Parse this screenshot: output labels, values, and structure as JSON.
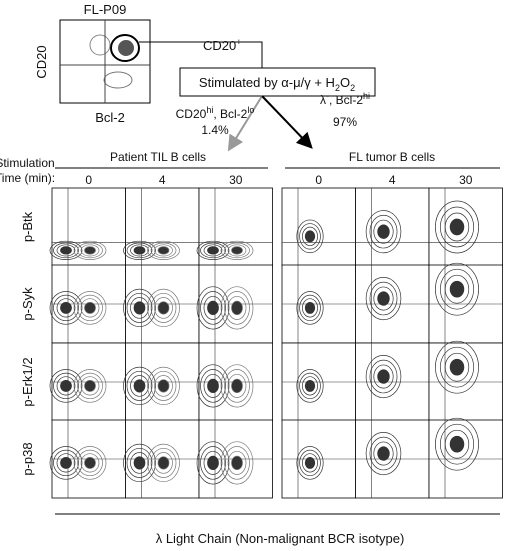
{
  "header": {
    "sample": "FL-P09",
    "y_axis": "CD20",
    "x_axis": "Bcl-2"
  },
  "gate": {
    "text": "CD20",
    "sup": "+"
  },
  "stimulus": [
    {
      "text": "Stimulated by α-μ/γ + H"
    },
    {
      "sub": "2"
    },
    {
      "text": "O"
    },
    {
      "sub": "2"
    }
  ],
  "branches": [
    {
      "label": [
        {
          "text": "CD20"
        },
        {
          "sup": "hi"
        },
        {
          "text": ", Bcl-2"
        },
        {
          "sup": "lo"
        }
      ],
      "percent": "1.4%",
      "title": "Patient TIL B cells"
    },
    {
      "label": [
        {
          "text": "λ"
        },
        {
          "sup": "-"
        },
        {
          "text": ", Bcl-2"
        },
        {
          "sup": "hi"
        }
      ],
      "percent": "97%",
      "title": "FL tumor B cells"
    }
  ],
  "time_header": [
    "Stimulation",
    "Time (min):"
  ],
  "times": [
    "0",
    "4",
    "30",
    "0",
    "4",
    "30"
  ],
  "rows": [
    "p-Btk",
    "p-Syk",
    "p-Erk1/2",
    "p-p38"
  ],
  "footer": "λ Light Chain (Non-malignant BCR isotype)"
}
